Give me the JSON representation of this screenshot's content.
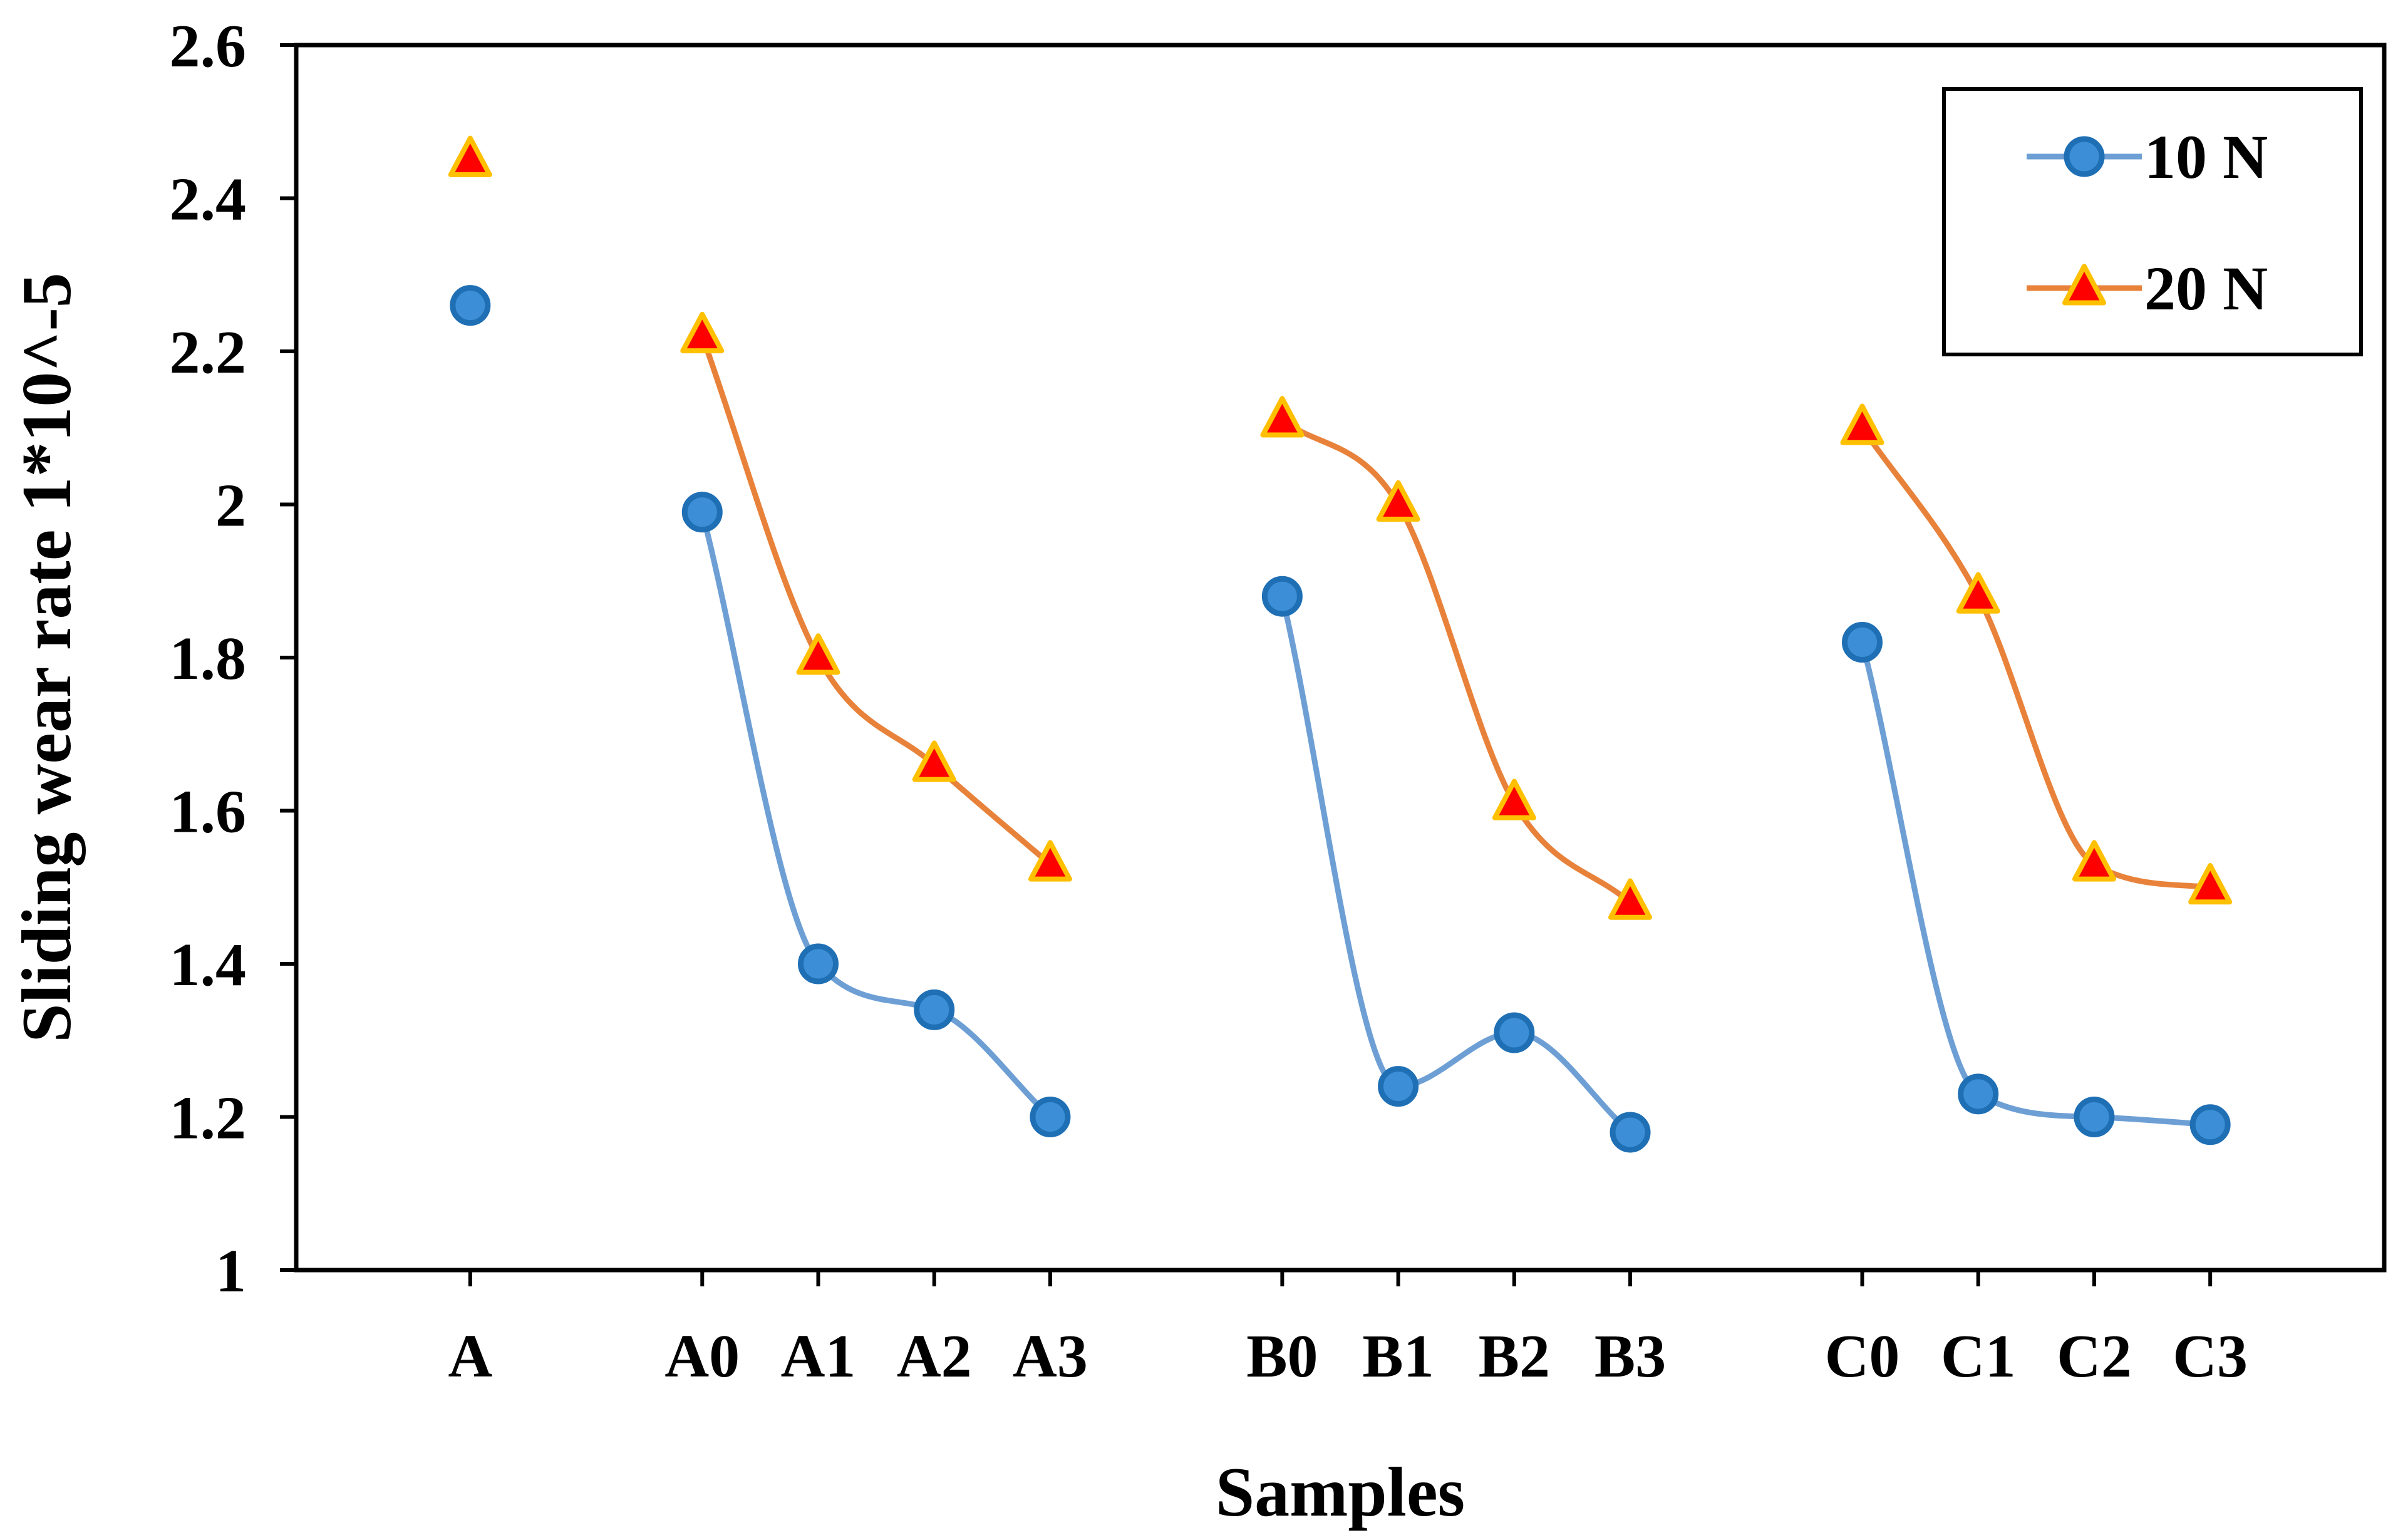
{
  "chart_data": {
    "type": "line",
    "title": "",
    "xlabel": "Samples",
    "ylabel": "Sliding wear rate 1*10^-5",
    "ylim": [
      1,
      2.6
    ],
    "yticks": [
      "1",
      "1.2",
      "1.4",
      "1.6",
      "1.8",
      "2",
      "2.2",
      "2.4",
      "2.6"
    ],
    "categories": [
      "A",
      "A0",
      "A1",
      "A2",
      "A3",
      "B0",
      "B1",
      "B2",
      "B3",
      "C0",
      "C1",
      "C2",
      "C3"
    ],
    "groups": [
      [
        "A"
      ],
      [
        "A0",
        "A1",
        "A2",
        "A3"
      ],
      [
        "B0",
        "B1",
        "B2",
        "B3"
      ],
      [
        "C0",
        "C1",
        "C2",
        "C3"
      ]
    ],
    "grid": false,
    "legend_position": "top-right",
    "series": [
      {
        "name": "10 N",
        "marker": "circle",
        "line_color": "#6D9FD5",
        "marker_fill": "#3C8FD6",
        "marker_edge": "#1F6FB5",
        "values": [
          2.26,
          1.99,
          1.4,
          1.34,
          1.2,
          1.88,
          1.24,
          1.31,
          1.18,
          1.82,
          1.23,
          1.2,
          1.19
        ]
      },
      {
        "name": "20 N",
        "marker": "triangle",
        "line_color": "#E8823A",
        "marker_fill": "#FF0000",
        "marker_edge": "#FFC000",
        "values": [
          2.45,
          2.22,
          1.8,
          1.66,
          1.53,
          2.11,
          2.0,
          1.61,
          1.48,
          2.1,
          1.88,
          1.53,
          1.5
        ]
      }
    ]
  }
}
